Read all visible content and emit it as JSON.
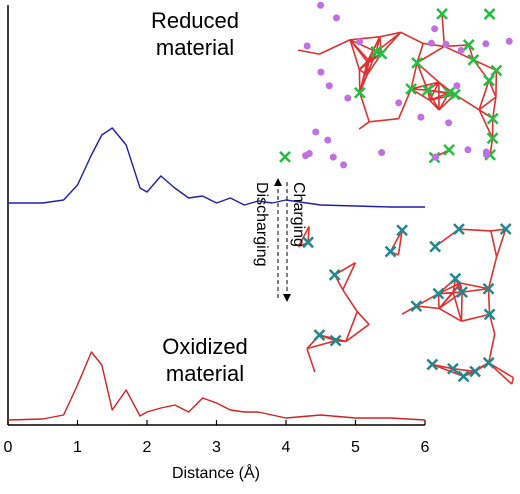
{
  "chart_data": {
    "type": "line",
    "x": [
      0,
      0.5,
      0.8,
      1.0,
      1.2,
      1.35,
      1.5,
      1.7,
      1.9,
      2.0,
      2.2,
      2.4,
      2.6,
      2.8,
      3.0,
      3.2,
      3.4,
      3.6,
      3.8,
      4.0,
      4.5,
      5.0,
      5.5,
      6.0
    ],
    "series": [
      {
        "name": "Reduced",
        "color": "#1f1fa8",
        "values": [
          22.2,
          22.2,
          22.5,
          24,
          27,
          29,
          29.7,
          28,
          23.7,
          23.3,
          24.9,
          23.7,
          22.7,
          22.9,
          22.2,
          22.7,
          22,
          22.4,
          22.2,
          22.5,
          22,
          21.9,
          21.8,
          21.8
        ]
      },
      {
        "name": "Oxidized",
        "color": "#d42020",
        "values": [
          0.5,
          0.6,
          1,
          4,
          7.3,
          6,
          1.5,
          3.5,
          0.9,
          1.3,
          1.7,
          2,
          1.3,
          2.7,
          2.2,
          1.5,
          1.3,
          1.3,
          1,
          0.7,
          1,
          0.7,
          0.7,
          0.5
        ]
      }
    ],
    "xlim": [
      0,
      6
    ],
    "xticks": [
      0,
      1,
      2,
      3,
      4,
      5,
      6
    ],
    "ylim": [
      0,
      42
    ],
    "x_label": "Distance (Å)",
    "reduced_label": [
      "Reduced",
      "material"
    ],
    "oxidized_label": [
      "Oxidized",
      "material"
    ],
    "charging_label": "Charging",
    "discharging_label": "Discharging"
  }
}
